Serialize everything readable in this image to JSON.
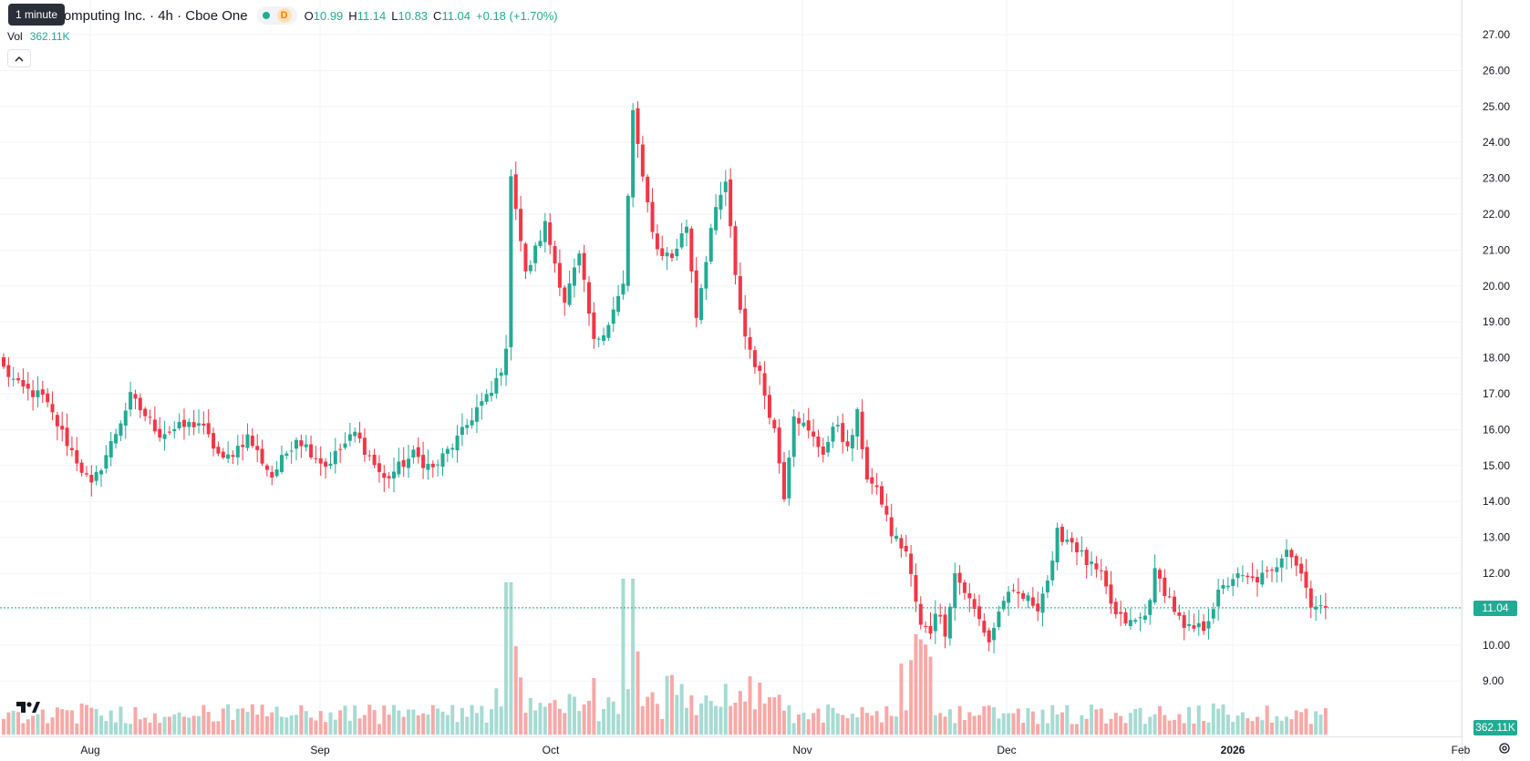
{
  "header": {
    "title": "um Computing Inc. · 4h · Cboe One",
    "tooltip": "1 minute",
    "badge": "D",
    "ohlc": {
      "o_label": "O",
      "o": "10.99",
      "h_label": "H",
      "h": "11.14",
      "l_label": "L",
      "l": "10.83",
      "c_label": "C",
      "c": "11.04",
      "change": "+0.18 (+1.70%)"
    }
  },
  "volume_legend": {
    "label": "Vol",
    "value": "362.11K"
  },
  "price_tags": {
    "last_price": "11.04",
    "last_volume": "362.11K"
  },
  "colors": {
    "up": "#22ab94",
    "down": "#f23645",
    "up_volume": "#a6dbd2",
    "down_volume": "#f7a9a7",
    "grid": "#f0f3fa"
  },
  "icons": {
    "collapse": "chevron-up-icon",
    "logo": "tradingview-logo",
    "settings": "gear-icon"
  },
  "chart_data": {
    "type": "candlestick",
    "y_axis": {
      "min": 8.6,
      "max": 27.1,
      "ticks": [
        "27.00",
        "26.00",
        "25.00",
        "24.00",
        "23.00",
        "22.00",
        "21.00",
        "20.00",
        "19.00",
        "18.00",
        "17.00",
        "16.00",
        "15.00",
        "14.00",
        "13.00",
        "12.00",
        "11.00",
        "10.00",
        "9.00"
      ]
    },
    "x_axis": {
      "labels": [
        "Aug",
        "Sep",
        "Oct",
        "Nov",
        "Dec",
        "2026",
        "Feb"
      ],
      "bold_label": "2026"
    },
    "last_price": 11.04,
    "anchors": [
      [
        0,
        17.7
      ],
      [
        3,
        17.2
      ],
      [
        8,
        16.9
      ],
      [
        12,
        15.9
      ],
      [
        18,
        14.4
      ],
      [
        22,
        15.6
      ],
      [
        26,
        16.9
      ],
      [
        32,
        15.9
      ],
      [
        40,
        16.2
      ],
      [
        45,
        15.1
      ],
      [
        50,
        15.8
      ],
      [
        55,
        14.7
      ],
      [
        60,
        15.8
      ],
      [
        66,
        15.0
      ],
      [
        72,
        15.9
      ],
      [
        78,
        14.6
      ],
      [
        84,
        15.3
      ],
      [
        88,
        14.9
      ],
      [
        94,
        15.9
      ],
      [
        97,
        16.6
      ],
      [
        100,
        17.0
      ],
      [
        103,
        18.1
      ],
      [
        104,
        23.2
      ],
      [
        107,
        20.3
      ],
      [
        111,
        21.7
      ],
      [
        115,
        19.6
      ],
      [
        118,
        20.8
      ],
      [
        121,
        18.4
      ],
      [
        124,
        19.0
      ],
      [
        127,
        20.0
      ],
      [
        129,
        24.9
      ],
      [
        131,
        22.9
      ],
      [
        134,
        21.0
      ],
      [
        137,
        20.8
      ],
      [
        140,
        21.7
      ],
      [
        142,
        19.2
      ],
      [
        145,
        21.6
      ],
      [
        148,
        22.9
      ],
      [
        150,
        20.2
      ],
      [
        152,
        18.6
      ],
      [
        155,
        17.5
      ],
      [
        158,
        16.0
      ],
      [
        160,
        14.2
      ],
      [
        162,
        16.5
      ],
      [
        165,
        15.9
      ],
      [
        168,
        15.4
      ],
      [
        171,
        16.2
      ],
      [
        173,
        15.4
      ],
      [
        175,
        16.4
      ],
      [
        177,
        14.7
      ],
      [
        180,
        14.0
      ],
      [
        182,
        13.1
      ],
      [
        185,
        12.6
      ],
      [
        188,
        10.5
      ],
      [
        190,
        10.4
      ],
      [
        191,
        11.0
      ],
      [
        193,
        10.4
      ],
      [
        195,
        12.0
      ],
      [
        197,
        11.5
      ],
      [
        200,
        10.7
      ],
      [
        202,
        10.1
      ],
      [
        205,
        11.3
      ],
      [
        208,
        11.4
      ],
      [
        212,
        11.1
      ],
      [
        215,
        12.2
      ],
      [
        216,
        13.1
      ],
      [
        219,
        12.9
      ],
      [
        222,
        12.3
      ],
      [
        225,
        11.9
      ],
      [
        228,
        10.8
      ],
      [
        231,
        10.6
      ],
      [
        234,
        10.8
      ],
      [
        236,
        12.0
      ],
      [
        239,
        11.3
      ],
      [
        242,
        10.4
      ],
      [
        246,
        10.5
      ],
      [
        249,
        11.4
      ],
      [
        252,
        11.9
      ],
      [
        256,
        11.8
      ],
      [
        260,
        12.0
      ],
      [
        263,
        12.8
      ],
      [
        266,
        12.0
      ],
      [
        268,
        11.2
      ],
      [
        271,
        11.0
      ]
    ],
    "volume_spikes": [
      [
        103,
        880
      ],
      [
        104,
        880
      ],
      [
        105,
        510
      ],
      [
        127,
        900
      ],
      [
        129,
        900
      ],
      [
        130,
        480
      ],
      [
        184,
        410
      ],
      [
        186,
        430
      ],
      [
        187,
        580
      ],
      [
        188,
        550
      ],
      [
        189,
        520
      ],
      [
        190,
        450
      ]
    ],
    "volume_max": 1000
  }
}
